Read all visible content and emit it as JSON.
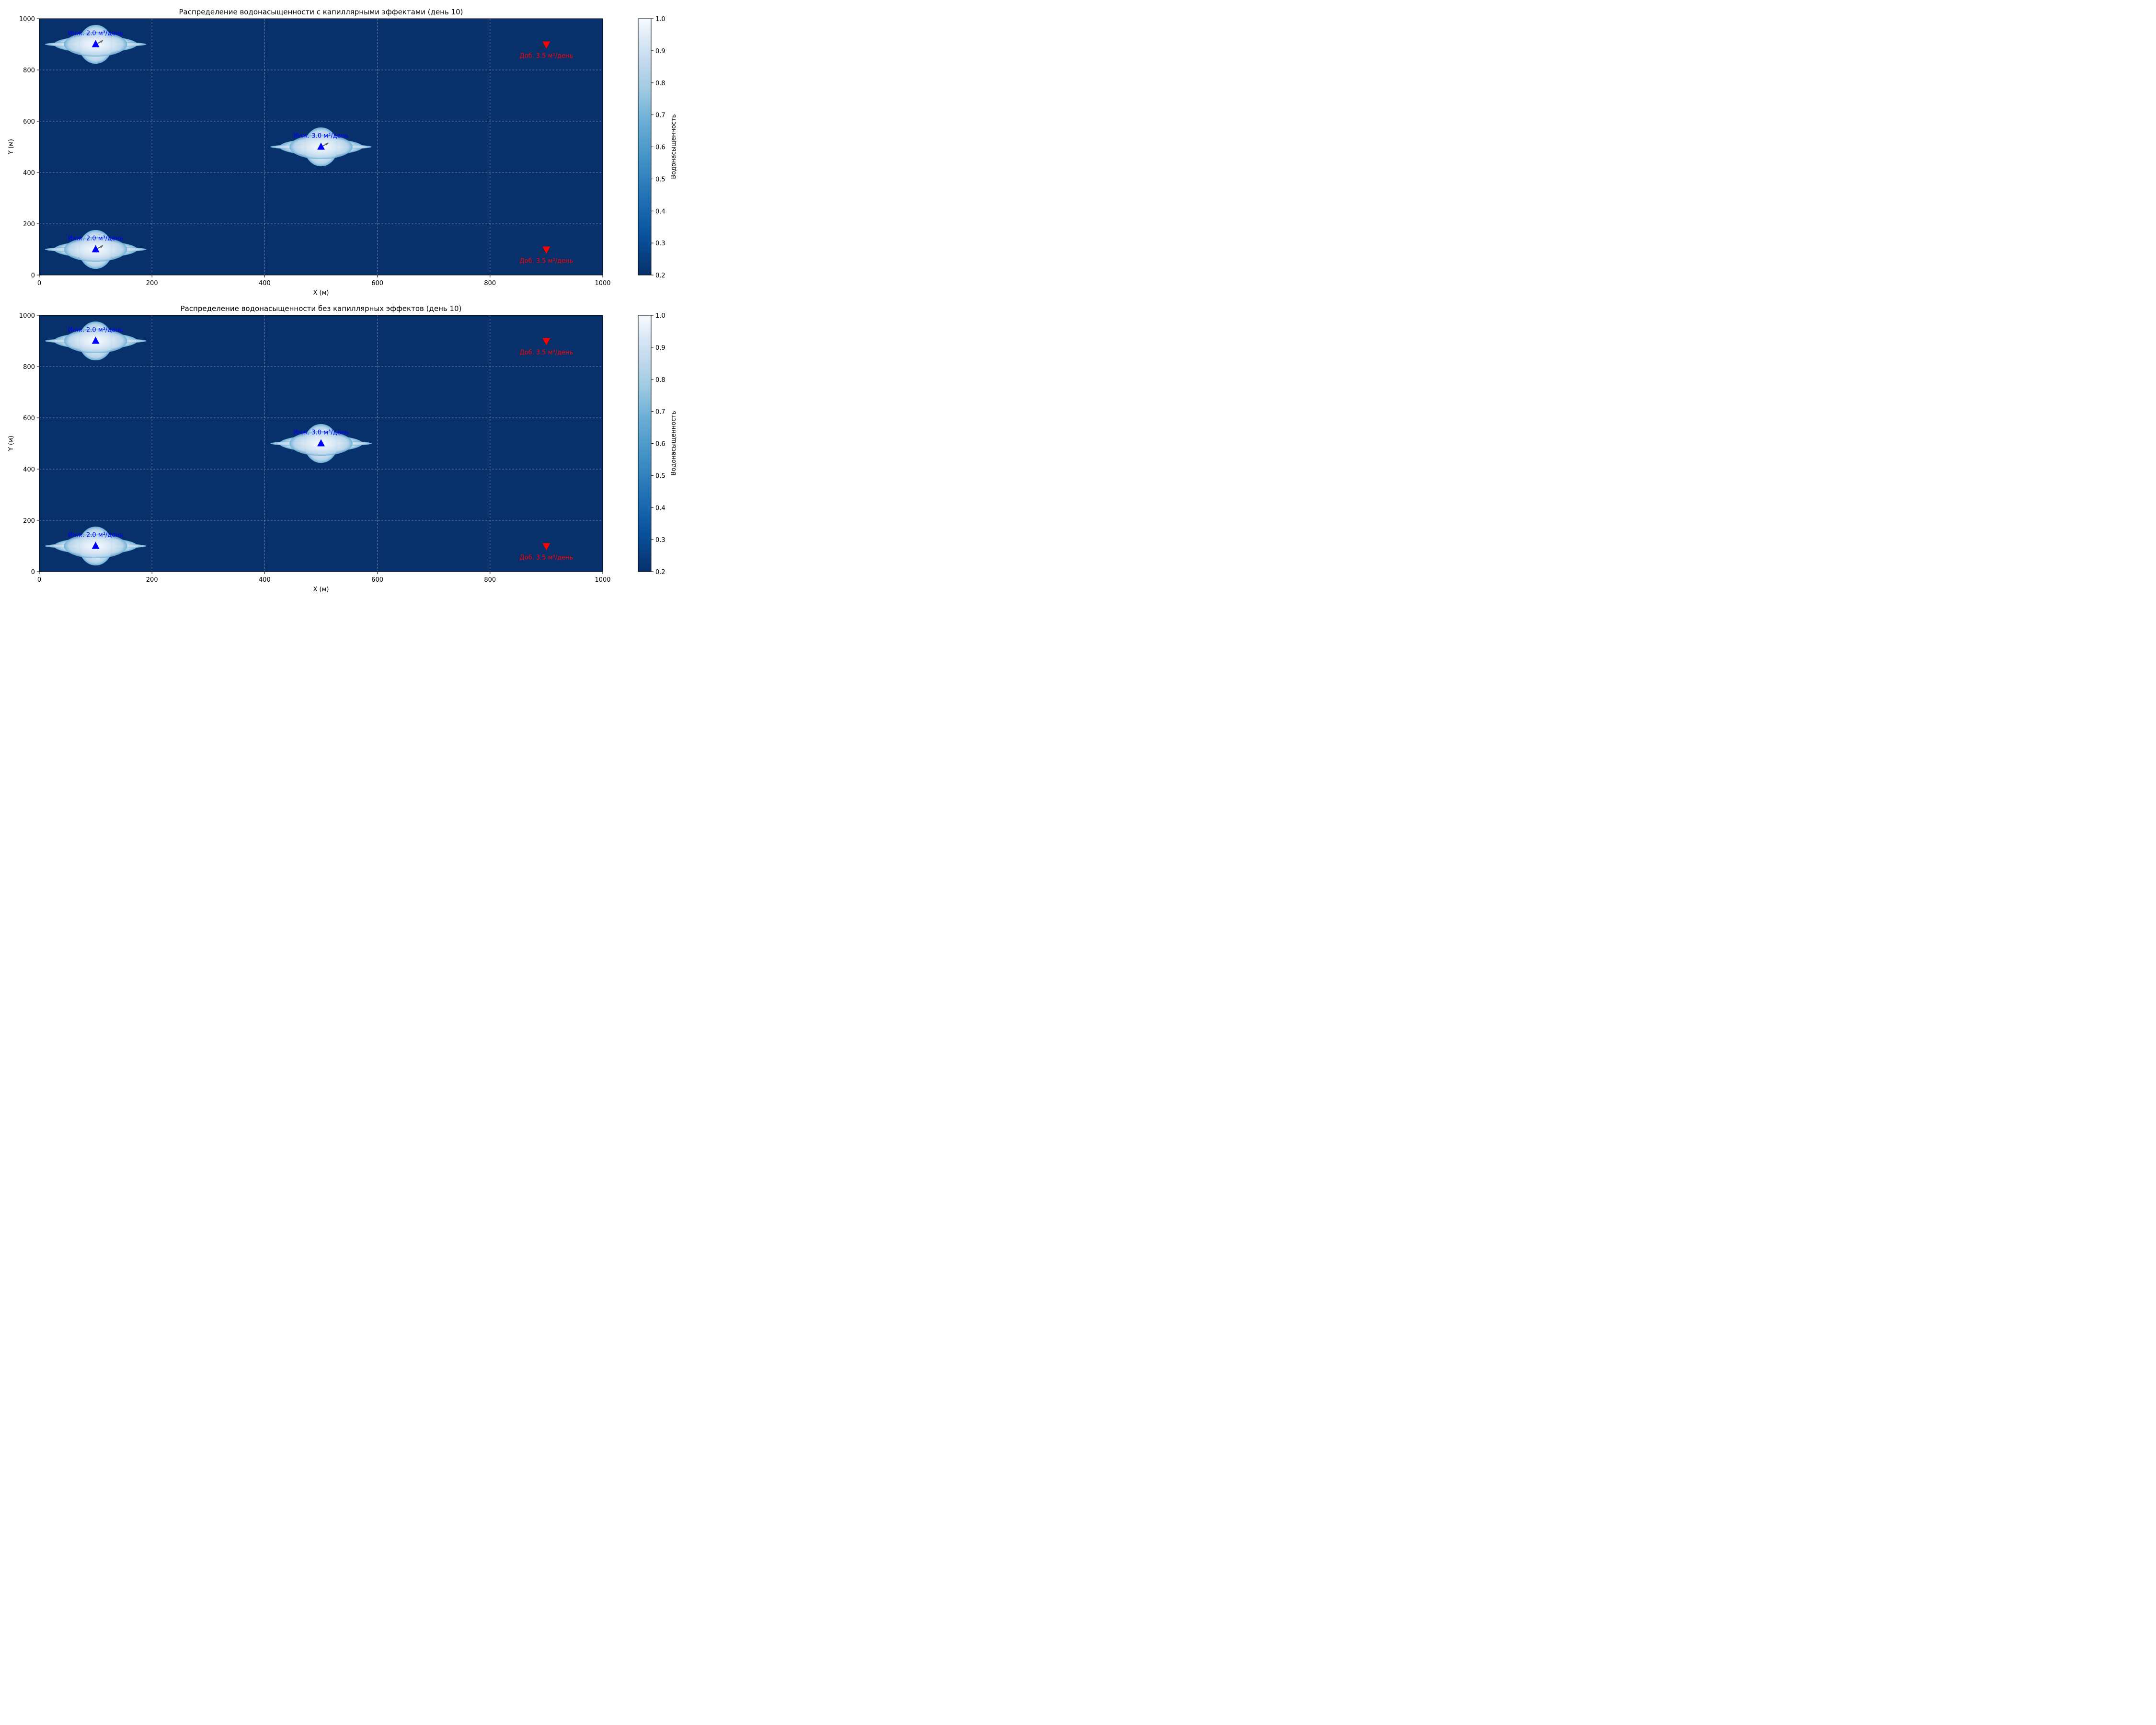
{
  "colorbar_label": "Водонасыщенность",
  "colorbar_ticks": [
    "0.2",
    "0.3",
    "0.4",
    "0.5",
    "0.6",
    "0.7",
    "0.8",
    "0.9",
    "1.0"
  ],
  "colorbar_range": [
    0.2,
    1.0
  ],
  "colormap": "Blues_r",
  "background_color": "#08306b",
  "injector_color": "#0000ff",
  "producer_color": "#ff0000",
  "chart_data": [
    {
      "type": "heatmap",
      "title": "Распределение водонасыщенности с капиллярными эффектами (день 10)",
      "xlabel": "X (м)",
      "ylabel": "Y (м)",
      "xlim": [
        0,
        1000
      ],
      "ylim": [
        0,
        1000
      ],
      "x_ticks": [
        "0",
        "200",
        "400",
        "600",
        "800",
        "1000"
      ],
      "y_ticks": [
        "0",
        "200",
        "400",
        "600",
        "800",
        "1000"
      ],
      "grid": true,
      "background_saturation": 0.2,
      "capillary_arrows": true,
      "injectors": [
        {
          "x": 100,
          "y": 900,
          "label": "Инж. 2.0 м³/день"
        },
        {
          "x": 500,
          "y": 500,
          "label": "Инж. 3.0 м³/день"
        },
        {
          "x": 100,
          "y": 100,
          "label": "Инж. 2.0 м³/день"
        }
      ],
      "producers": [
        {
          "x": 900,
          "y": 900,
          "label": "Доб. 3.5 м³/день"
        },
        {
          "x": 900,
          "y": 100,
          "label": "Доб. 3.5 м³/день"
        }
      ]
    },
    {
      "type": "heatmap",
      "title": "Распределение водонасыщенности без капиллярных эффектов (день 10)",
      "xlabel": "X (м)",
      "ylabel": "Y (м)",
      "xlim": [
        0,
        1000
      ],
      "ylim": [
        0,
        1000
      ],
      "x_ticks": [
        "0",
        "200",
        "400",
        "600",
        "800",
        "1000"
      ],
      "y_ticks": [
        "0",
        "200",
        "400",
        "600",
        "800",
        "1000"
      ],
      "grid": true,
      "background_saturation": 0.2,
      "capillary_arrows": false,
      "injectors": [
        {
          "x": 100,
          "y": 900,
          "label": "Инж. 2.0 м³/день"
        },
        {
          "x": 500,
          "y": 500,
          "label": "Инж. 3.0 м³/день"
        },
        {
          "x": 100,
          "y": 100,
          "label": "Инж. 2.0 м³/день"
        }
      ],
      "producers": [
        {
          "x": 900,
          "y": 900,
          "label": "Доб. 3.5 м³/день"
        },
        {
          "x": 900,
          "y": 100,
          "label": "Доб. 3.5 м³/день"
        }
      ]
    }
  ]
}
